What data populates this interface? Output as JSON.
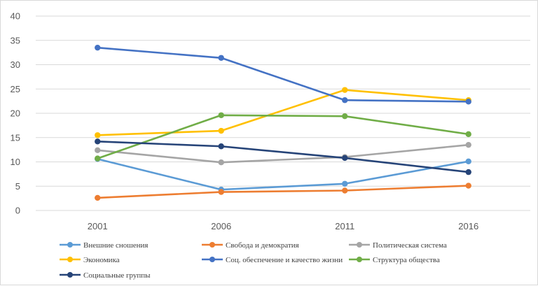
{
  "chart_data": {
    "type": "line",
    "title": "",
    "xlabel": "",
    "ylabel": "",
    "categories": [
      "2001",
      "2006",
      "2011",
      "2016"
    ],
    "ylim": [
      0,
      40
    ],
    "yticks": [
      0,
      5,
      10,
      15,
      20,
      25,
      30,
      35,
      40
    ],
    "grid": "horizontal",
    "legend_position": "bottom",
    "series": [
      {
        "name": "Внешние сношения",
        "color": "#5b9bd5",
        "values": [
          10.6,
          4.3,
          5.5,
          10.1
        ]
      },
      {
        "name": "Свобода и демократия",
        "color": "#ed7d31",
        "values": [
          2.6,
          3.8,
          4.1,
          5.1
        ]
      },
      {
        "name": "Политическая система",
        "color": "#a5a5a5",
        "values": [
          12.4,
          9.9,
          11.0,
          13.5
        ]
      },
      {
        "name": "Экономика",
        "color": "#ffc000",
        "values": [
          15.5,
          16.4,
          24.8,
          22.7
        ]
      },
      {
        "name": "Соц. обеспечение и качество жизни",
        "color": "#4472c4",
        "values": [
          33.5,
          31.4,
          22.7,
          22.4
        ]
      },
      {
        "name": "Структура общества",
        "color": "#70ad47",
        "values": [
          10.7,
          19.6,
          19.4,
          15.7
        ]
      },
      {
        "name": "Социальные группы",
        "color": "#264478",
        "values": [
          14.2,
          13.2,
          10.8,
          7.9
        ]
      }
    ]
  }
}
